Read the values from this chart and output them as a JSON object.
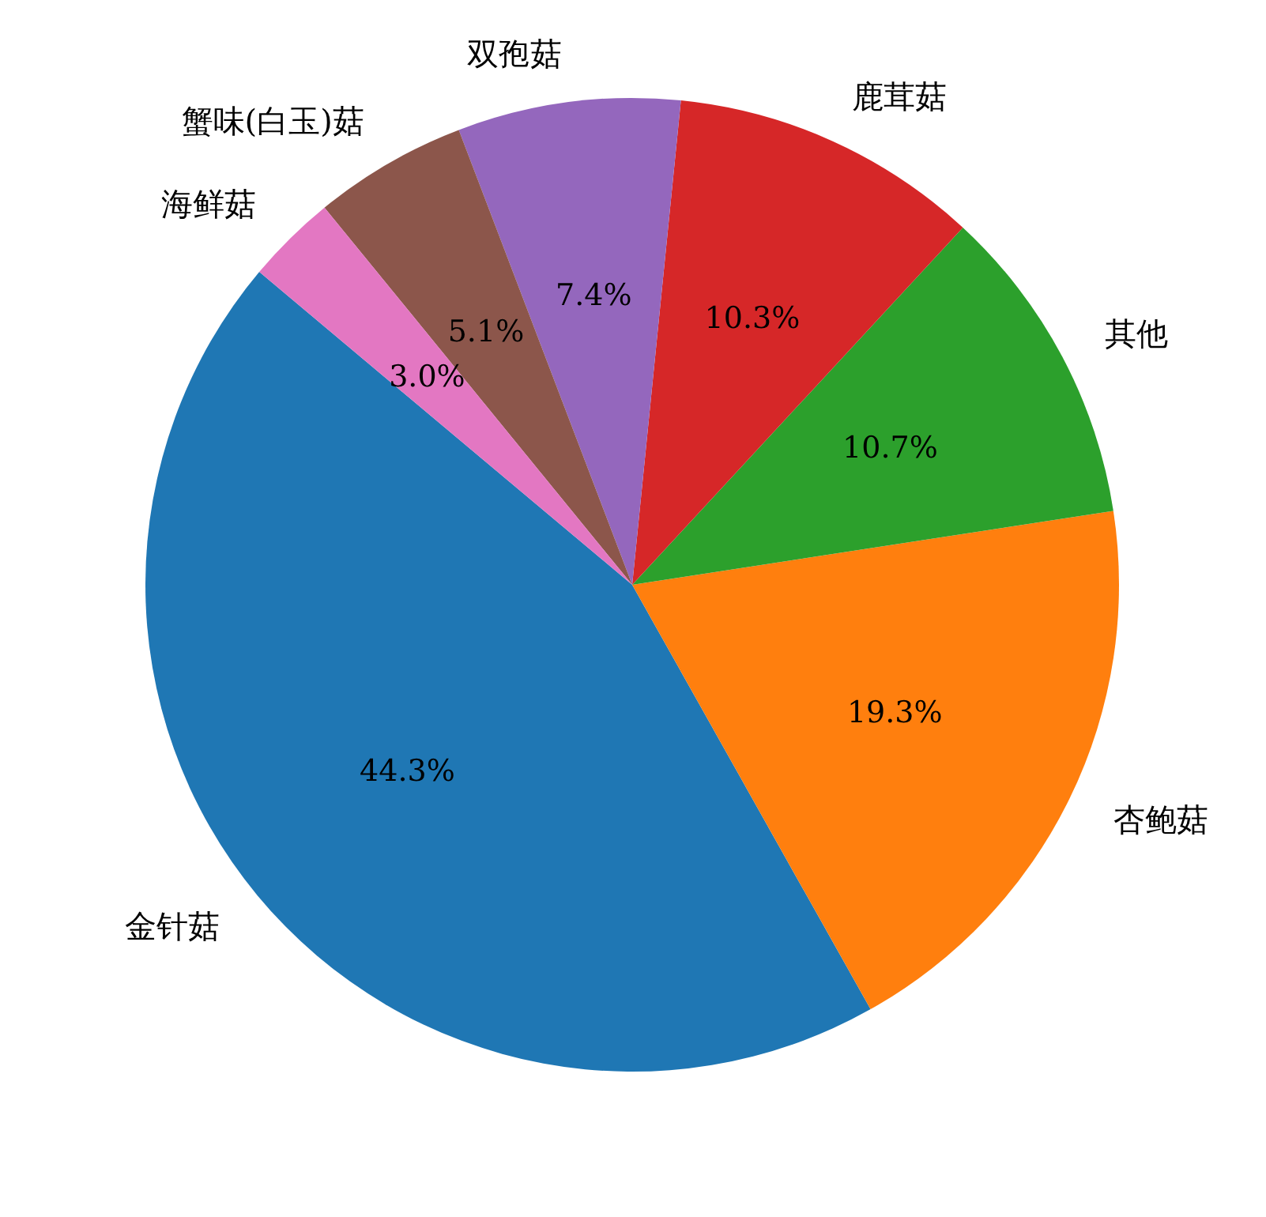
{
  "chart_data": {
    "type": "pie",
    "categories": [
      "金针菇",
      "杏鲍菇",
      "其他",
      "鹿茸菇",
      "双孢菇",
      "蟹味(白玉)菇",
      "海鲜菇"
    ],
    "values": [
      44.3,
      19.3,
      10.7,
      10.3,
      7.4,
      5.1,
      3.0
    ],
    "colors": [
      "#1f77b4",
      "#ff7f0e",
      "#2ca02c",
      "#d62728",
      "#9467bd",
      "#8c564b",
      "#e377c2"
    ],
    "value_labels": [
      "44.3%",
      "19.3%",
      "10.7%",
      "10.3%",
      "7.4%",
      "5.1%",
      "3.0%"
    ]
  }
}
